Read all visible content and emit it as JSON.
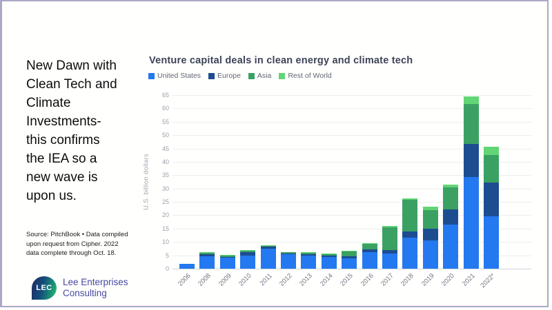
{
  "slide": {
    "headline_lines": [
      "New Dawn with",
      "Clean Tech and",
      "Climate",
      "Investments-",
      "this confirms",
      "the IEA so a",
      "new wave is",
      "upon us."
    ],
    "source_lines": [
      "Source: PitchBook • Data compiled",
      "upon request from Cipher. 2022",
      "data complete through Oct. 18."
    ]
  },
  "logo": {
    "badge_text": "LEC",
    "company_lines": [
      "Lee Enterprises",
      "Consulting"
    ],
    "text_color": "#4747a1"
  },
  "chart_data": {
    "type": "bar",
    "stacked": true,
    "title": "Venture capital deals in clean energy and climate tech",
    "ylabel": "U.S. billion dollars",
    "ylim": [
      0,
      65
    ],
    "ytick_step": 5,
    "grid": true,
    "legend_position": "top",
    "categories": [
      "2006",
      "2008",
      "2009",
      "2010",
      "2011",
      "2012",
      "2013",
      "2014",
      "2015",
      "2016",
      "2017",
      "2018",
      "2019",
      "2020",
      "2021",
      "2022*"
    ],
    "series": [
      {
        "name": "United States",
        "color": "#2478f0",
        "values": [
          1.8,
          4.6,
          4.2,
          5.0,
          7.4,
          5.4,
          5.0,
          4.3,
          4.0,
          6.3,
          5.6,
          11.5,
          10.6,
          16.4,
          34.3,
          19.7
        ]
      },
      {
        "name": "Europe",
        "color": "#1c4d91",
        "values": [
          0,
          0.9,
          0.3,
          1.1,
          0.8,
          0.3,
          0.4,
          0.6,
          0.7,
          0.8,
          1.3,
          2.5,
          4.3,
          5.8,
          12.4,
          12.6
        ]
      },
      {
        "name": "Asia",
        "color": "#3ba163",
        "values": [
          0,
          0.5,
          0.5,
          0.6,
          0.4,
          0.4,
          0.6,
          0.6,
          1.8,
          2.2,
          8.7,
          11.7,
          7.0,
          8.2,
          14.9,
          10.2
        ]
      },
      {
        "name": "Rest of World",
        "color": "#62d575",
        "values": [
          0,
          0.2,
          0.2,
          0.2,
          0.1,
          0.2,
          0.2,
          0.2,
          0.2,
          0.2,
          0.3,
          0.6,
          1.3,
          1.2,
          2.9,
          3.1
        ]
      }
    ],
    "totals": [
      1.8,
      6.2,
      5.2,
      6.9,
      8.7,
      6.3,
      6.2,
      5.7,
      6.7,
      9.5,
      15.9,
      26.3,
      23.2,
      31.6,
      64.5,
      45.6
    ]
  },
  "colors": {
    "slide_border": "#a9a8c6",
    "title_text": "#3d4458",
    "legend_text": "#5f6672",
    "tick_text": "#9aa0a8",
    "gridline": "#ededef",
    "baseline": "#ced3d9"
  }
}
